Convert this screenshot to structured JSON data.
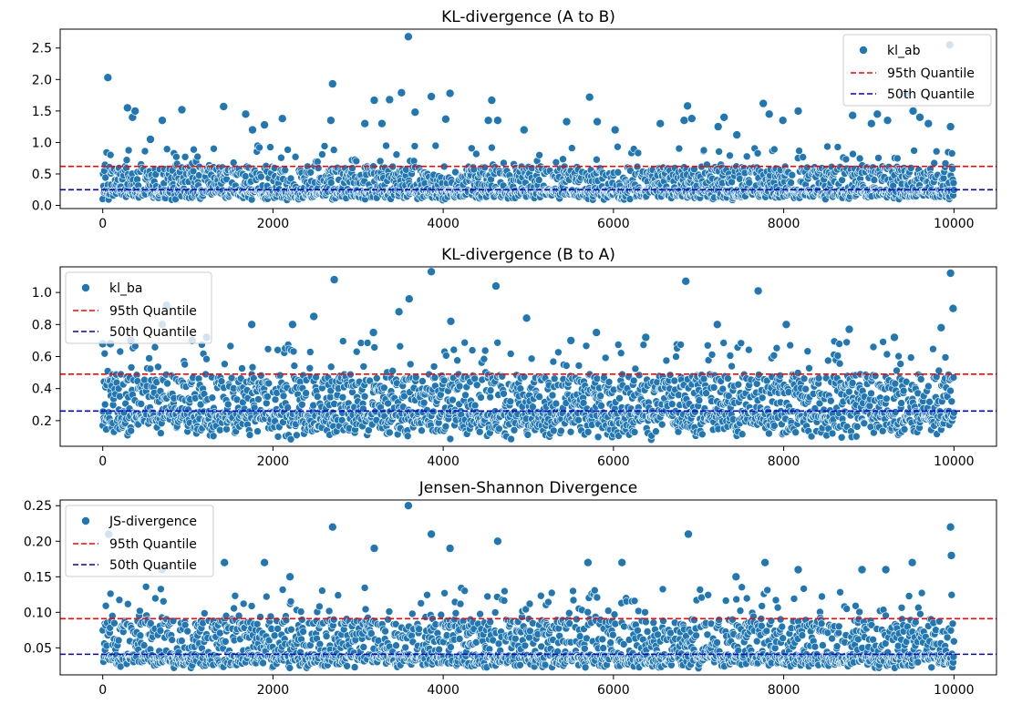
{
  "colors": {
    "points": "#1f77b4",
    "point_edge": "#ffffff",
    "q95": "#ff0000",
    "q50": "#0000cc"
  },
  "chart_data": [
    {
      "type": "scatter",
      "title": "KL-divergence (A to B)",
      "xlabel": "",
      "ylabel": "",
      "xlim": [
        -500,
        10500
      ],
      "ylim": [
        -0.05,
        2.8
      ],
      "xticks": [
        0,
        2000,
        4000,
        6000,
        8000,
        10000
      ],
      "xtick_labels": [
        "0",
        "2000",
        "4000",
        "6000",
        "8000",
        "10000"
      ],
      "yticks": [
        0.0,
        0.5,
        1.0,
        1.5,
        2.0,
        2.5
      ],
      "ytick_labels": [
        "0.0",
        "0.5",
        "1.0",
        "1.5",
        "2.0",
        "2.5"
      ],
      "legend_position": "top-right",
      "legend": [
        "kl_ab",
        "95th Quantile",
        "50th Quantile"
      ],
      "hlines": {
        "q95": 0.62,
        "q50": 0.25
      },
      "series_name": "kl_ab",
      "n_points": 10000,
      "distribution": {
        "min": 0.08,
        "median": 0.25,
        "q95": 0.62
      },
      "outliers": [
        [
          60,
          2.03
        ],
        [
          290,
          1.55
        ],
        [
          350,
          1.4
        ],
        [
          380,
          1.5
        ],
        [
          560,
          1.05
        ],
        [
          700,
          1.35
        ],
        [
          930,
          1.52
        ],
        [
          1420,
          1.57
        ],
        [
          1680,
          1.45
        ],
        [
          1760,
          1.2
        ],
        [
          1900,
          1.28
        ],
        [
          2110,
          1.38
        ],
        [
          2680,
          1.35
        ],
        [
          2700,
          1.93
        ],
        [
          3080,
          1.3
        ],
        [
          3190,
          1.67
        ],
        [
          3280,
          1.3
        ],
        [
          3370,
          1.68
        ],
        [
          3510,
          1.79
        ],
        [
          3590,
          2.68
        ],
        [
          3670,
          1.48
        ],
        [
          3860,
          1.73
        ],
        [
          4030,
          1.37
        ],
        [
          4080,
          1.78
        ],
        [
          4530,
          1.35
        ],
        [
          4570,
          1.67
        ],
        [
          4640,
          1.35
        ],
        [
          4950,
          1.2
        ],
        [
          5450,
          1.33
        ],
        [
          5720,
          1.72
        ],
        [
          5810,
          1.33
        ],
        [
          6020,
          1.2
        ],
        [
          6550,
          1.3
        ],
        [
          6830,
          1.35
        ],
        [
          6870,
          1.58
        ],
        [
          6920,
          1.38
        ],
        [
          7230,
          1.25
        ],
        [
          7300,
          1.4
        ],
        [
          7450,
          1.12
        ],
        [
          7760,
          1.62
        ],
        [
          7830,
          1.45
        ],
        [
          7990,
          1.35
        ],
        [
          8170,
          1.5
        ],
        [
          8810,
          1.43
        ],
        [
          9030,
          1.3
        ],
        [
          9100,
          1.45
        ],
        [
          9220,
          1.35
        ],
        [
          9430,
          1.78
        ],
        [
          9520,
          1.5
        ],
        [
          9600,
          1.4
        ],
        [
          9700,
          1.3
        ],
        [
          9950,
          2.55
        ],
        [
          9960,
          1.25
        ]
      ]
    },
    {
      "type": "scatter",
      "title": "KL-divergence (B to A)",
      "xlabel": "",
      "ylabel": "",
      "xlim": [
        -500,
        10500
      ],
      "ylim": [
        0.04,
        1.16
      ],
      "xticks": [
        0,
        2000,
        4000,
        6000,
        8000,
        10000
      ],
      "xtick_labels": [
        "0",
        "2000",
        "4000",
        "6000",
        "8000",
        "10000"
      ],
      "yticks": [
        0.2,
        0.4,
        0.6,
        0.8,
        1.0
      ],
      "ytick_labels": [
        "0.2",
        "0.4",
        "0.6",
        "0.8",
        "1.0"
      ],
      "legend_position": "top-left",
      "legend": [
        "kl_ba",
        "95th Quantile",
        "50th Quantile"
      ],
      "hlines": {
        "q95": 0.49,
        "q50": 0.26
      },
      "series_name": "kl_ba",
      "n_points": 10000,
      "distribution": {
        "min": 0.08,
        "median": 0.26,
        "q95": 0.49
      },
      "outliers": [
        [
          0,
          0.68
        ],
        [
          90,
          0.68
        ],
        [
          330,
          0.7
        ],
        [
          700,
          0.8
        ],
        [
          750,
          0.92
        ],
        [
          1050,
          0.7
        ],
        [
          1220,
          0.72
        ],
        [
          1750,
          0.8
        ],
        [
          2230,
          0.8
        ],
        [
          2480,
          0.85
        ],
        [
          2720,
          1.08
        ],
        [
          3180,
          0.75
        ],
        [
          3480,
          0.88
        ],
        [
          3600,
          0.96
        ],
        [
          3860,
          1.13
        ],
        [
          4090,
          0.82
        ],
        [
          4620,
          1.04
        ],
        [
          4980,
          0.84
        ],
        [
          5500,
          0.7
        ],
        [
          5800,
          0.75
        ],
        [
          6380,
          0.72
        ],
        [
          6850,
          1.07
        ],
        [
          7220,
          0.8
        ],
        [
          7700,
          1.01
        ],
        [
          8030,
          0.8
        ],
        [
          8770,
          0.77
        ],
        [
          9300,
          0.72
        ],
        [
          9850,
          0.78
        ],
        [
          9960,
          1.12
        ],
        [
          9990,
          0.9
        ]
      ]
    },
    {
      "type": "scatter",
      "title": "Jensen-Shannon Divergence",
      "xlabel": "",
      "ylabel": "",
      "xlim": [
        -500,
        10500
      ],
      "ylim": [
        0.012,
        0.258
      ],
      "xticks": [
        0,
        2000,
        4000,
        6000,
        8000,
        10000
      ],
      "xtick_labels": [
        "0",
        "2000",
        "4000",
        "6000",
        "8000",
        "10000"
      ],
      "yticks": [
        0.05,
        0.1,
        0.15,
        0.2,
        0.25
      ],
      "ytick_labels": [
        "0.05",
        "0.10",
        "0.15",
        "0.20",
        "0.25"
      ],
      "legend_position": "top-left",
      "legend": [
        "JS-divergence",
        "95th Quantile",
        "50th Quantile"
      ],
      "hlines": {
        "q95": 0.091,
        "q50": 0.041
      },
      "series_name": "JS-divergence",
      "n_points": 10000,
      "distribution": {
        "min": 0.02,
        "median": 0.041,
        "q95": 0.091
      },
      "outliers": [
        [
          70,
          0.21
        ],
        [
          700,
          0.16
        ],
        [
          1430,
          0.17
        ],
        [
          1900,
          0.17
        ],
        [
          2200,
          0.15
        ],
        [
          2700,
          0.22
        ],
        [
          3190,
          0.19
        ],
        [
          3590,
          0.25
        ],
        [
          3860,
          0.21
        ],
        [
          4080,
          0.19
        ],
        [
          4640,
          0.2
        ],
        [
          5700,
          0.17
        ],
        [
          6100,
          0.17
        ],
        [
          6880,
          0.21
        ],
        [
          7440,
          0.15
        ],
        [
          7780,
          0.17
        ],
        [
          8170,
          0.16
        ],
        [
          8920,
          0.16
        ],
        [
          9200,
          0.16
        ],
        [
          9510,
          0.17
        ],
        [
          9960,
          0.22
        ],
        [
          9970,
          0.18
        ]
      ]
    }
  ]
}
